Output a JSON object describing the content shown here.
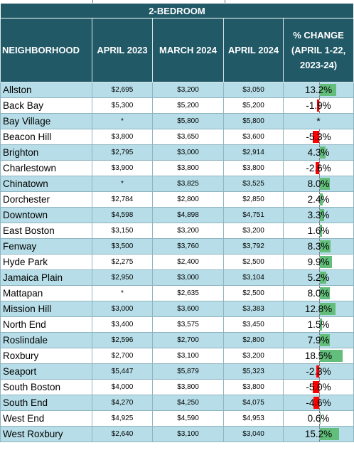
{
  "title": "2-BEDROOM",
  "headers": {
    "neighborhood": "NEIGHBORHOOD",
    "april_2023": "APRIL 2023",
    "march_2024": "MARCH 2024",
    "april_2024": "APRIL 2024",
    "pct_change": "% CHANGE (APRIL 1-22, 2023-24)"
  },
  "colors": {
    "header_bg": "#215967",
    "band": "#b7dee8",
    "pos_bar": "#63be7b",
    "neg_bar": "#ff0000"
  },
  "rows": [
    {
      "neighborhood": "Allston",
      "april_2023": "$2,695",
      "march_2024": "$3,200",
      "april_2024": "$3,050",
      "change": "13.2%",
      "value": 13.2
    },
    {
      "neighborhood": "Back Bay",
      "april_2023": "$5,300",
      "march_2024": "$5,200",
      "april_2024": "$5,200",
      "change": "-1.9%",
      "value": -1.9
    },
    {
      "neighborhood": "Bay Village",
      "april_2023": "*",
      "march_2024": "$5,800",
      "april_2024": "$5,800",
      "change": "*",
      "value": null
    },
    {
      "neighborhood": "Beacon Hill",
      "april_2023": "$3,800",
      "march_2024": "$3,650",
      "april_2024": "$3,600",
      "change": "-5.3%",
      "value": -5.3
    },
    {
      "neighborhood": "Brighton",
      "april_2023": "$2,795",
      "march_2024": "$3,000",
      "april_2024": "$2,914",
      "change": "4.3%",
      "value": 4.3
    },
    {
      "neighborhood": "Charlestown",
      "april_2023": "$3,900",
      "march_2024": "$3,800",
      "april_2024": "$3,800",
      "change": "-2.6%",
      "value": -2.6
    },
    {
      "neighborhood": "Chinatown",
      "april_2023": "*",
      "march_2024": "$3,825",
      "april_2024": "$3,525",
      "change": "8.0%",
      "value": 8.0
    },
    {
      "neighborhood": "Dorchester",
      "april_2023": "$2,784",
      "march_2024": "$2,800",
      "april_2024": "$2,850",
      "change": "2.4%",
      "value": 2.4
    },
    {
      "neighborhood": "Downtown",
      "april_2023": "$4,598",
      "march_2024": "$4,898",
      "april_2024": "$4,751",
      "change": "3.3%",
      "value": 3.3
    },
    {
      "neighborhood": "East Boston",
      "april_2023": "$3,150",
      "march_2024": "$3,200",
      "april_2024": "$3,200",
      "change": "1.6%",
      "value": 1.6
    },
    {
      "neighborhood": "Fenway",
      "april_2023": "$3,500",
      "march_2024": "$3,760",
      "april_2024": "$3,792",
      "change": "8.3%",
      "value": 8.3
    },
    {
      "neighborhood": "Hyde Park",
      "april_2023": "$2,275",
      "march_2024": "$2,400",
      "april_2024": "$2,500",
      "change": "9.9%",
      "value": 9.9
    },
    {
      "neighborhood": "Jamaica Plain",
      "april_2023": "$2,950",
      "march_2024": "$3,000",
      "april_2024": "$3,104",
      "change": "5.2%",
      "value": 5.2
    },
    {
      "neighborhood": "Mattapan",
      "april_2023": "*",
      "march_2024": "$2,635",
      "april_2024": "$2,500",
      "change": "8.0%",
      "value": 8.0
    },
    {
      "neighborhood": "Mission Hill",
      "april_2023": "$3,000",
      "march_2024": "$3,600",
      "april_2024": "$3,383",
      "change": "12.8%",
      "value": 12.8
    },
    {
      "neighborhood": "North End",
      "april_2023": "$3,400",
      "march_2024": "$3,575",
      "april_2024": "$3,450",
      "change": "1.5%",
      "value": 1.5
    },
    {
      "neighborhood": "Roslindale",
      "april_2023": "$2,596",
      "march_2024": "$2,700",
      "april_2024": "$2,800",
      "change": "7.9%",
      "value": 7.9
    },
    {
      "neighborhood": "Roxbury",
      "april_2023": "$2,700",
      "march_2024": "$3,100",
      "april_2024": "$3,200",
      "change": "18.5%",
      "value": 18.5
    },
    {
      "neighborhood": "Seaport",
      "april_2023": "$5,447",
      "march_2024": "$5,879",
      "april_2024": "$5,323",
      "change": "-2.3%",
      "value": -2.3
    },
    {
      "neighborhood": "South Boston",
      "april_2023": "$4,000",
      "march_2024": "$3,800",
      "april_2024": "$3,800",
      "change": "-5.0%",
      "value": -5.0
    },
    {
      "neighborhood": "South End",
      "april_2023": "$4,270",
      "march_2024": "$4,250",
      "april_2024": "$4,075",
      "change": "-4.6%",
      "value": -4.6
    },
    {
      "neighborhood": "West End",
      "april_2023": "$4,925",
      "march_2024": "$4,590",
      "april_2024": "$4,953",
      "change": "0.6%",
      "value": 0.6
    },
    {
      "neighborhood": "West Roxbury",
      "april_2023": "$2,640",
      "march_2024": "$3,100",
      "april_2024": "$3,040",
      "change": "15.2%",
      "value": 15.2
    }
  ]
}
